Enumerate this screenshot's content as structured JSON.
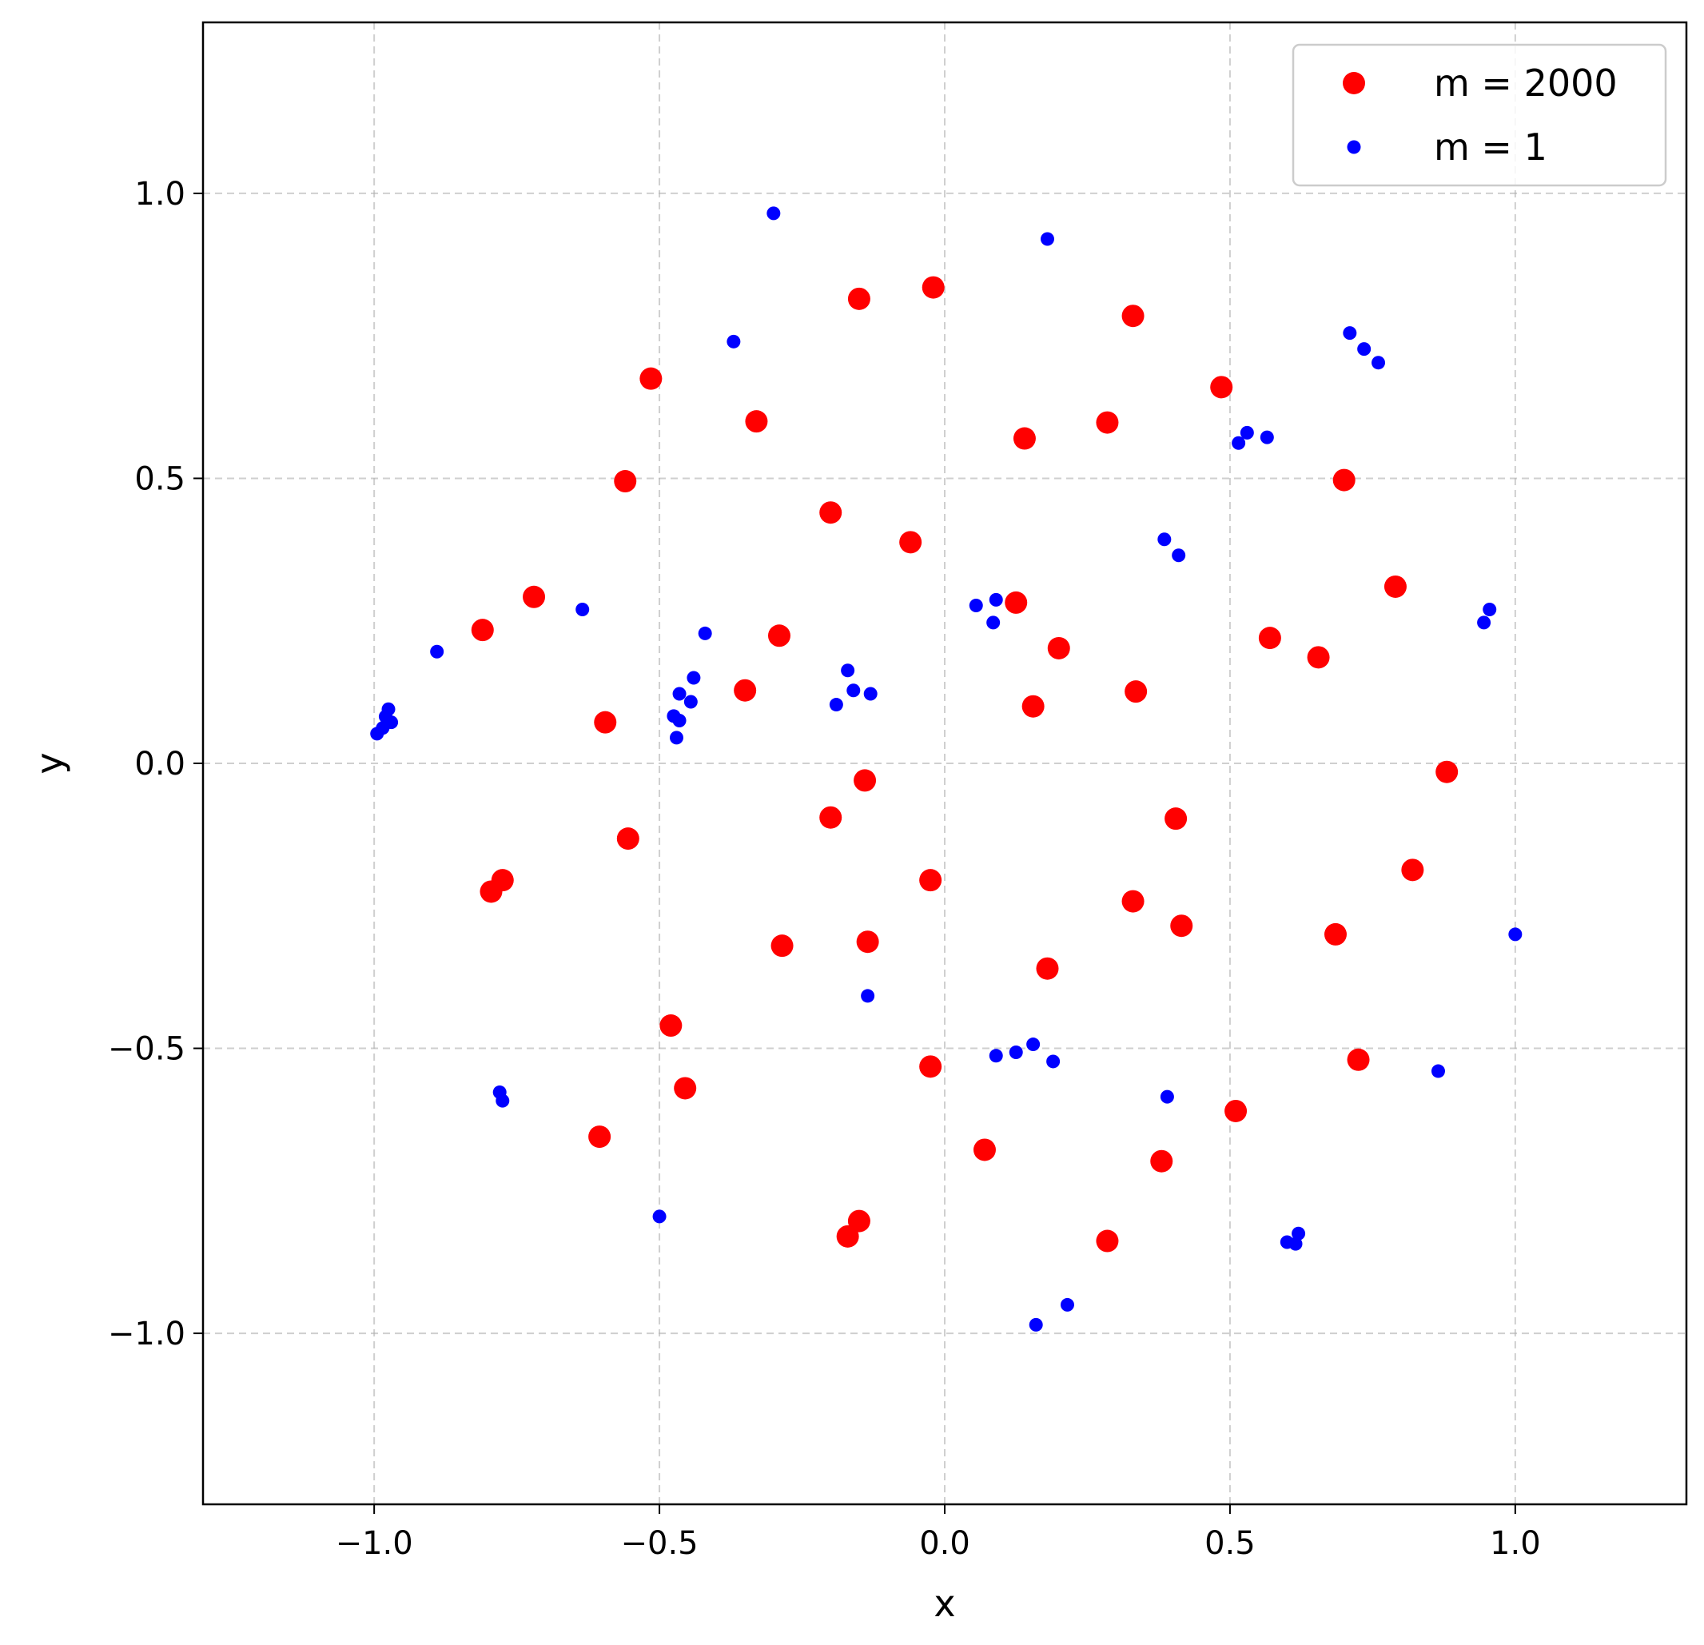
{
  "chart_data": {
    "type": "scatter",
    "xlabel": "x",
    "ylabel": "y",
    "xlim": [
      -1.3,
      1.3
    ],
    "ylim": [
      -1.3,
      1.3
    ],
    "xticks": [
      -1.0,
      -0.5,
      0.0,
      0.5,
      1.0
    ],
    "yticks": [
      -1.0,
      -0.5,
      0.0,
      0.5,
      1.0
    ],
    "xtick_labels": [
      "−1.0",
      "−0.5",
      "0.0",
      "0.5",
      "1.0"
    ],
    "ytick_labels": [
      "−1.0",
      "−0.5",
      "0.0",
      "0.5",
      "1.0"
    ],
    "grid": true,
    "legend_position": "top-right",
    "series": [
      {
        "name": "m = 2000",
        "color": "#ff0000",
        "marker": "large-dot",
        "points": [
          [
            -0.02,
            0.835
          ],
          [
            -0.15,
            0.815
          ],
          [
            0.33,
            0.785
          ],
          [
            -0.515,
            0.675
          ],
          [
            0.485,
            0.66
          ],
          [
            -0.33,
            0.6
          ],
          [
            0.285,
            0.598
          ],
          [
            0.14,
            0.57
          ],
          [
            -0.56,
            0.495
          ],
          [
            0.7,
            0.497
          ],
          [
            -0.2,
            0.44
          ],
          [
            -0.06,
            0.388
          ],
          [
            0.79,
            0.31
          ],
          [
            -0.72,
            0.292
          ],
          [
            0.125,
            0.282
          ],
          [
            -0.81,
            0.234
          ],
          [
            -0.29,
            0.224
          ],
          [
            0.57,
            0.22
          ],
          [
            0.2,
            0.202
          ],
          [
            0.655,
            0.186
          ],
          [
            -0.35,
            0.128
          ],
          [
            0.335,
            0.126
          ],
          [
            0.155,
            0.1
          ],
          [
            -0.595,
            0.072
          ],
          [
            0.88,
            -0.015
          ],
          [
            -0.14,
            -0.03
          ],
          [
            -0.2,
            -0.095
          ],
          [
            0.405,
            -0.097
          ],
          [
            -0.555,
            -0.132
          ],
          [
            0.82,
            -0.187
          ],
          [
            -0.775,
            -0.205
          ],
          [
            -0.795,
            -0.225
          ],
          [
            -0.025,
            -0.205
          ],
          [
            0.33,
            -0.242
          ],
          [
            0.415,
            -0.285
          ],
          [
            0.685,
            -0.3
          ],
          [
            -0.135,
            -0.313
          ],
          [
            -0.285,
            -0.32
          ],
          [
            0.18,
            -0.36
          ],
          [
            -0.48,
            -0.46
          ],
          [
            0.725,
            -0.52
          ],
          [
            -0.025,
            -0.532
          ],
          [
            -0.455,
            -0.57
          ],
          [
            0.51,
            -0.61
          ],
          [
            -0.605,
            -0.655
          ],
          [
            0.07,
            -0.678
          ],
          [
            0.38,
            -0.698
          ],
          [
            -0.15,
            -0.803
          ],
          [
            -0.17,
            -0.83
          ],
          [
            0.285,
            -0.838
          ]
        ]
      },
      {
        "name": "m = 1",
        "color": "#0000ff",
        "marker": "small-dot",
        "points": [
          [
            -0.3,
            0.965
          ],
          [
            0.18,
            0.92
          ],
          [
            0.71,
            0.755
          ],
          [
            0.735,
            0.727
          ],
          [
            0.76,
            0.703
          ],
          [
            -0.37,
            0.74
          ],
          [
            0.53,
            0.58
          ],
          [
            0.565,
            0.572
          ],
          [
            0.515,
            0.562
          ],
          [
            0.385,
            0.393
          ],
          [
            0.41,
            0.365
          ],
          [
            0.955,
            0.27
          ],
          [
            0.945,
            0.247
          ],
          [
            0.09,
            0.287
          ],
          [
            0.055,
            0.277
          ],
          [
            0.085,
            0.247
          ],
          [
            -0.635,
            0.27
          ],
          [
            -0.42,
            0.228
          ],
          [
            -0.89,
            0.196
          ],
          [
            -0.17,
            0.163
          ],
          [
            -0.44,
            0.15
          ],
          [
            -0.16,
            0.128
          ],
          [
            -0.13,
            0.122
          ],
          [
            -0.465,
            0.122
          ],
          [
            -0.445,
            0.108
          ],
          [
            -0.19,
            0.103
          ],
          [
            -0.975,
            0.095
          ],
          [
            -0.98,
            0.082
          ],
          [
            -0.475,
            0.083
          ],
          [
            -0.465,
            0.075
          ],
          [
            -0.97,
            0.072
          ],
          [
            -0.985,
            0.062
          ],
          [
            -0.995,
            0.052
          ],
          [
            -0.47,
            0.045
          ],
          [
            1.0,
            -0.3
          ],
          [
            -0.135,
            -0.408
          ],
          [
            0.155,
            -0.493
          ],
          [
            0.125,
            -0.507
          ],
          [
            0.09,
            -0.513
          ],
          [
            0.19,
            -0.523
          ],
          [
            0.865,
            -0.54
          ],
          [
            -0.78,
            -0.577
          ],
          [
            -0.775,
            -0.592
          ],
          [
            0.39,
            -0.585
          ],
          [
            -0.5,
            -0.795
          ],
          [
            0.62,
            -0.825
          ],
          [
            0.6,
            -0.84
          ],
          [
            0.615,
            -0.843
          ],
          [
            0.215,
            -0.95
          ],
          [
            0.16,
            -0.985
          ]
        ]
      }
    ]
  }
}
